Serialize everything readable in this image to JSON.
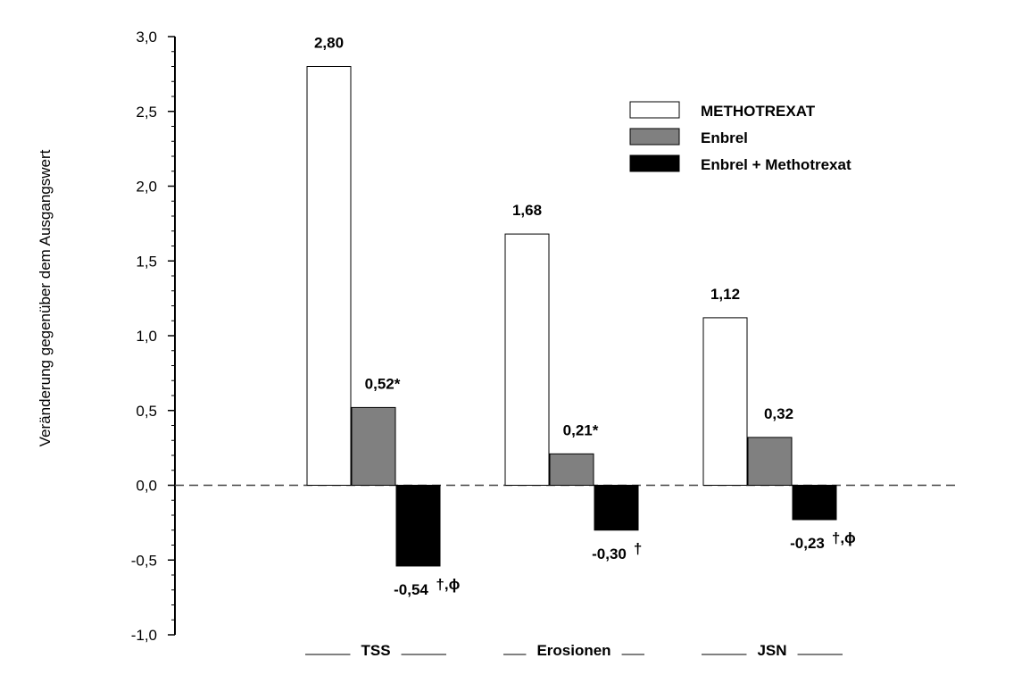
{
  "chart_data": {
    "type": "bar",
    "ylabel": "Veränderung gegenüber dem Ausgangswert",
    "xlabel": "",
    "ylim": [
      -1.0,
      3.0
    ],
    "yticks": [
      3.0,
      2.5,
      2.0,
      1.5,
      1.0,
      0.5,
      0.0,
      -0.5,
      -1.0
    ],
    "ytick_labels": [
      "3,0",
      "2,5",
      "2,0",
      "1,5",
      "1,0",
      "0,5",
      "0,0",
      "-0,5",
      "-1,0"
    ],
    "categories": [
      "TSS",
      "Erosionen",
      "JSN"
    ],
    "series": [
      {
        "name": "METHOTREXAT",
        "color": "#ffffff",
        "values": [
          2.8,
          1.68,
          1.12
        ],
        "labels": [
          "2,80",
          "1,68",
          "1,12"
        ],
        "marks": [
          "",
          "",
          ""
        ]
      },
      {
        "name": "Enbrel",
        "color": "#808080",
        "values": [
          0.52,
          0.21,
          0.32
        ],
        "labels": [
          "0,52*",
          "0,21*",
          "0,32"
        ],
        "marks": [
          "",
          "",
          ""
        ]
      },
      {
        "name": "Enbrel + Methotrexat",
        "color": "#000000",
        "values": [
          -0.54,
          -0.3,
          -0.23
        ],
        "labels": [
          "-0,54",
          "-0,30",
          "-0,23"
        ],
        "marks": [
          "†,ϕ",
          "†",
          "†,ϕ"
        ]
      }
    ],
    "legend_position": "top-right",
    "zero_line": "dashed",
    "grid": false
  }
}
